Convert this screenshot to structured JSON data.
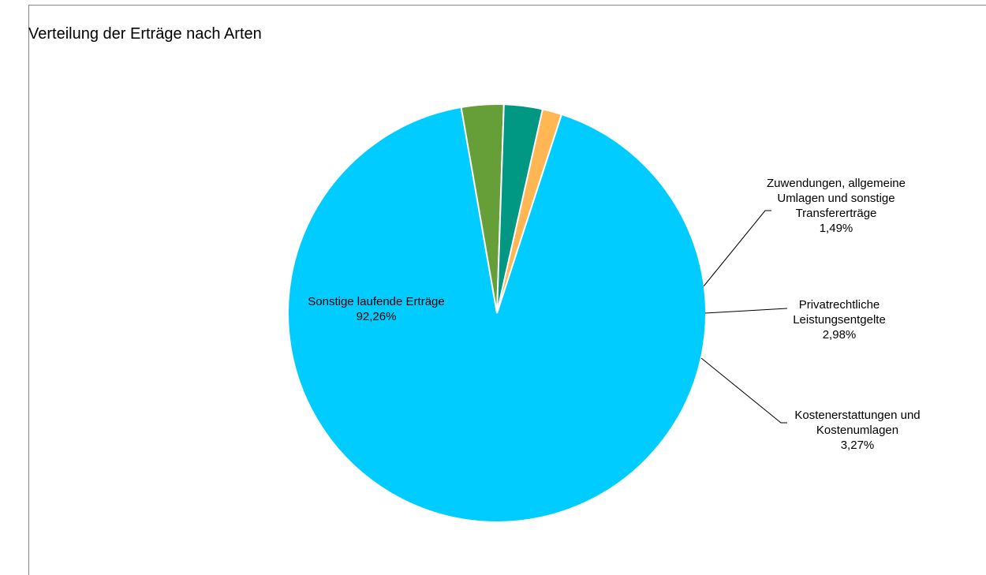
{
  "chart_data": {
    "type": "pie",
    "title": "Verteilung der Erträge nach Arten",
    "slices": [
      {
        "label_lines": [
          "Sonstige laufende Erträge"
        ],
        "value": 92.26,
        "value_label": "92,26%",
        "color": "#00CCFF"
      },
      {
        "label_lines": [
          "Kostenerstattungen und",
          "Kostenumlagen"
        ],
        "value": 3.27,
        "value_label": "3,27%",
        "color": "#669E38"
      },
      {
        "label_lines": [
          "Privatrechtliche",
          "Leistungsentgelte"
        ],
        "value": 2.98,
        "value_label": "2,98%",
        "color": "#009883"
      },
      {
        "label_lines": [
          "Zuwendungen, allgemeine",
          "Umlagen und sonstige",
          "Transfererträge"
        ],
        "value": 1.49,
        "value_label": "1,49%",
        "color": "#FFB653"
      }
    ],
    "start_angle_deg": 72,
    "direction": "clockwise",
    "legend": "none"
  }
}
